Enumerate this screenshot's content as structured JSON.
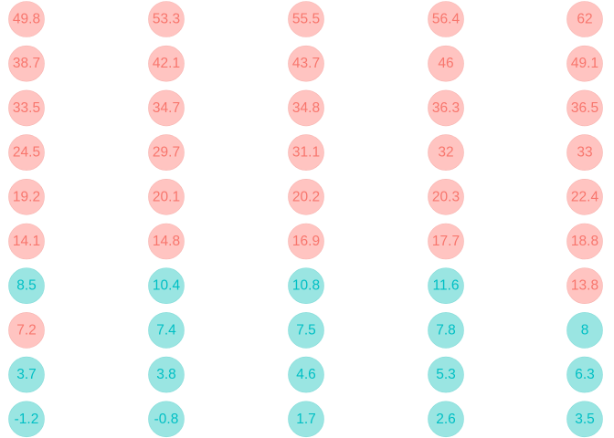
{
  "chart_data": {
    "type": "scatter",
    "title": "",
    "xlabel": "",
    "ylabel": "",
    "grid": false,
    "legend": "none",
    "colors": {
      "high_fill": "#ffc4c1",
      "high_text": "#f8766d",
      "low_fill": "#9ae5e2",
      "low_text": "#00bfc4"
    },
    "columns": 5,
    "rows": 10,
    "cells": [
      {
        "row": 1,
        "col": 1,
        "value": "49.8",
        "group": "high"
      },
      {
        "row": 1,
        "col": 2,
        "value": "53.3",
        "group": "high"
      },
      {
        "row": 1,
        "col": 3,
        "value": "55.5",
        "group": "high"
      },
      {
        "row": 1,
        "col": 4,
        "value": "56.4",
        "group": "high"
      },
      {
        "row": 1,
        "col": 5,
        "value": "62",
        "group": "high"
      },
      {
        "row": 2,
        "col": 1,
        "value": "38.7",
        "group": "high"
      },
      {
        "row": 2,
        "col": 2,
        "value": "42.1",
        "group": "high"
      },
      {
        "row": 2,
        "col": 3,
        "value": "43.7",
        "group": "high"
      },
      {
        "row": 2,
        "col": 4,
        "value": "46",
        "group": "high"
      },
      {
        "row": 2,
        "col": 5,
        "value": "49.1",
        "group": "high"
      },
      {
        "row": 3,
        "col": 1,
        "value": "33.5",
        "group": "high"
      },
      {
        "row": 3,
        "col": 2,
        "value": "34.7",
        "group": "high"
      },
      {
        "row": 3,
        "col": 3,
        "value": "34.8",
        "group": "high"
      },
      {
        "row": 3,
        "col": 4,
        "value": "36.3",
        "group": "high"
      },
      {
        "row": 3,
        "col": 5,
        "value": "36.5",
        "group": "high"
      },
      {
        "row": 4,
        "col": 1,
        "value": "24.5",
        "group": "high"
      },
      {
        "row": 4,
        "col": 2,
        "value": "29.7",
        "group": "high"
      },
      {
        "row": 4,
        "col": 3,
        "value": "31.1",
        "group": "high"
      },
      {
        "row": 4,
        "col": 4,
        "value": "32",
        "group": "high"
      },
      {
        "row": 4,
        "col": 5,
        "value": "33",
        "group": "high"
      },
      {
        "row": 5,
        "col": 1,
        "value": "19.2",
        "group": "high"
      },
      {
        "row": 5,
        "col": 2,
        "value": "20.1",
        "group": "high"
      },
      {
        "row": 5,
        "col": 3,
        "value": "20.2",
        "group": "high"
      },
      {
        "row": 5,
        "col": 4,
        "value": "20.3",
        "group": "high"
      },
      {
        "row": 5,
        "col": 5,
        "value": "22.4",
        "group": "high"
      },
      {
        "row": 6,
        "col": 1,
        "value": "14.1",
        "group": "high"
      },
      {
        "row": 6,
        "col": 2,
        "value": "14.8",
        "group": "high"
      },
      {
        "row": 6,
        "col": 3,
        "value": "16.9",
        "group": "high"
      },
      {
        "row": 6,
        "col": 4,
        "value": "17.7",
        "group": "high"
      },
      {
        "row": 6,
        "col": 5,
        "value": "18.8",
        "group": "high"
      },
      {
        "row": 7,
        "col": 1,
        "value": "8.5",
        "group": "low"
      },
      {
        "row": 7,
        "col": 2,
        "value": "10.4",
        "group": "low"
      },
      {
        "row": 7,
        "col": 3,
        "value": "10.8",
        "group": "low"
      },
      {
        "row": 7,
        "col": 4,
        "value": "11.6",
        "group": "low"
      },
      {
        "row": 7,
        "col": 5,
        "value": "13.8",
        "group": "high"
      },
      {
        "row": 8,
        "col": 1,
        "value": "7.2",
        "group": "high"
      },
      {
        "row": 8,
        "col": 2,
        "value": "7.4",
        "group": "low"
      },
      {
        "row": 8,
        "col": 3,
        "value": "7.5",
        "group": "low"
      },
      {
        "row": 8,
        "col": 4,
        "value": "7.8",
        "group": "low"
      },
      {
        "row": 8,
        "col": 5,
        "value": "8",
        "group": "low"
      },
      {
        "row": 9,
        "col": 1,
        "value": "3.7",
        "group": "low"
      },
      {
        "row": 9,
        "col": 2,
        "value": "3.8",
        "group": "low"
      },
      {
        "row": 9,
        "col": 3,
        "value": "4.6",
        "group": "low"
      },
      {
        "row": 9,
        "col": 4,
        "value": "5.3",
        "group": "low"
      },
      {
        "row": 9,
        "col": 5,
        "value": "6.3",
        "group": "low"
      },
      {
        "row": 10,
        "col": 1,
        "value": "-1.2",
        "group": "low"
      },
      {
        "row": 10,
        "col": 2,
        "value": "-0.8",
        "group": "low"
      },
      {
        "row": 10,
        "col": 3,
        "value": "1.7",
        "group": "low"
      },
      {
        "row": 10,
        "col": 4,
        "value": "2.6",
        "group": "low"
      },
      {
        "row": 10,
        "col": 5,
        "value": "3.5",
        "group": "low"
      }
    ]
  }
}
